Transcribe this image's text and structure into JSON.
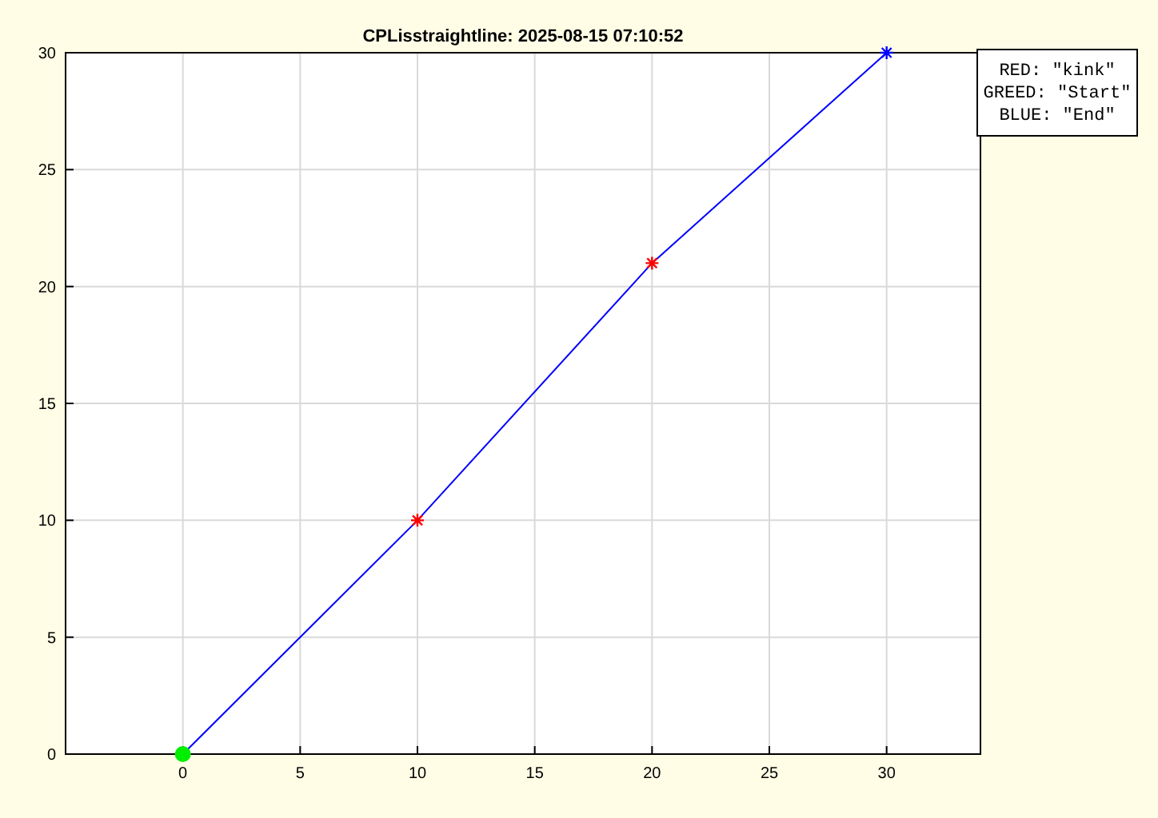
{
  "chart_data": {
    "type": "line",
    "title": "CPLisstraightline: 2025-08-15 07:10:52",
    "xlim": [
      -5,
      34
    ],
    "ylim": [
      0,
      30
    ],
    "xticks": [
      0,
      5,
      10,
      15,
      20,
      25,
      30
    ],
    "yticks": [
      0,
      5,
      10,
      15,
      20,
      25,
      30
    ],
    "grid": true,
    "series": [
      {
        "color": "#0000ff",
        "x": [
          0,
          10,
          20,
          30
        ],
        "values": [
          0,
          10,
          21,
          30
        ],
        "marker": "none"
      },
      {
        "type": "scatter",
        "color": "#00ee00",
        "x": [
          0
        ],
        "values": [
          0
        ],
        "marker": "circle"
      },
      {
        "type": "scatter",
        "color": "#ff0000",
        "x": [
          10,
          20
        ],
        "values": [
          10,
          21
        ],
        "marker": "cross"
      },
      {
        "type": "scatter",
        "color": "#0000ff",
        "x": [
          30
        ],
        "values": [
          30
        ],
        "marker": "cross"
      }
    ],
    "annotations": [
      "RED: \"kink\"",
      "GREED: \"Start\"",
      "BLUE: \"End\""
    ]
  }
}
